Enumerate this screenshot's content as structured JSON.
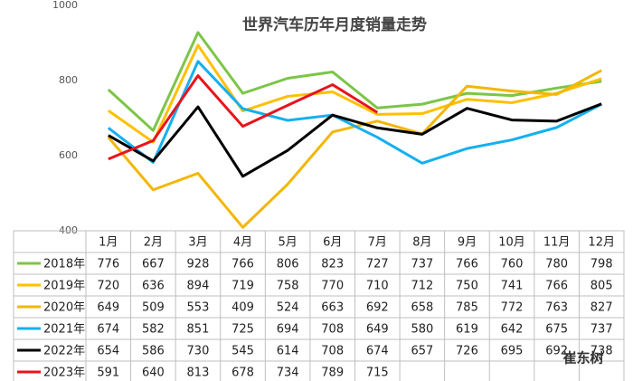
{
  "chart_data": {
    "type": "line",
    "title": "世界汽车历年月度销量走势",
    "categories": [
      "1月",
      "2月",
      "3月",
      "4月",
      "5月",
      "6月",
      "7月",
      "8月",
      "9月",
      "10月",
      "11月",
      "12月"
    ],
    "ylim": [
      400,
      1000
    ],
    "yticks": [
      400,
      600,
      800,
      1000
    ],
    "grid": false,
    "watermark": "崔东树",
    "series": [
      {
        "name": "2018年",
        "color": "#7cc546",
        "values": [
          776,
          667,
          928,
          766,
          806,
          823,
          727,
          737,
          766,
          760,
          780,
          798
        ]
      },
      {
        "name": "2019年",
        "color": "#ffc000",
        "values": [
          720,
          636,
          894,
          719,
          758,
          770,
          710,
          712,
          750,
          741,
          766,
          805
        ]
      },
      {
        "name": "2020年",
        "color": "#f2b705",
        "values": [
          649,
          509,
          553,
          409,
          524,
          663,
          692,
          658,
          785,
          772,
          763,
          827
        ]
      },
      {
        "name": "2021年",
        "color": "#14b0ef",
        "values": [
          674,
          582,
          851,
          725,
          694,
          708,
          649,
          580,
          619,
          642,
          675,
          737
        ]
      },
      {
        "name": "2022年",
        "color": "#000000",
        "values": [
          654,
          586,
          730,
          545,
          614,
          708,
          674,
          657,
          726,
          695,
          692,
          738
        ]
      },
      {
        "name": "2023年",
        "color": "#e8141b",
        "values": [
          591,
          640,
          813,
          678,
          734,
          789,
          715,
          null,
          null,
          null,
          null,
          null
        ]
      }
    ]
  }
}
